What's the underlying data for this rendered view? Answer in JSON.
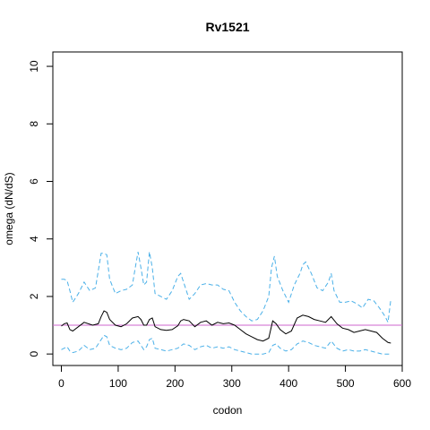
{
  "chart_data": {
    "type": "line",
    "title": "Rv1521",
    "xlabel": "codon",
    "ylabel": "omega (dN/dS)",
    "xlim": [
      -15,
      600
    ],
    "ylim": [
      -0.4,
      10.5
    ],
    "x_ticks": [
      0,
      100,
      200,
      300,
      400,
      500,
      600
    ],
    "y_ticks": [
      0,
      2,
      4,
      6,
      8,
      10
    ],
    "x_tick_labels": [
      "0",
      "100",
      "200",
      "300",
      "400",
      "500",
      "600"
    ],
    "y_tick_labels": [
      "0",
      "2",
      "4",
      "6",
      "8",
      "10"
    ],
    "grid": false,
    "reference_line": {
      "y": 1,
      "color": "#cc66cc"
    },
    "colors": {
      "omega": "#000000",
      "bounds": "#4ab0e8",
      "axis": "#000000"
    },
    "series": [
      {
        "role": "omega",
        "style": "solid",
        "x": [
          0,
          5,
          10,
          15,
          20,
          30,
          40,
          55,
          65,
          70,
          75,
          80,
          85,
          95,
          105,
          115,
          125,
          135,
          140,
          145,
          150,
          155,
          160,
          165,
          175,
          185,
          195,
          205,
          210,
          215,
          225,
          235,
          245,
          255,
          265,
          275,
          285,
          295,
          305,
          315,
          325,
          335,
          345,
          355,
          365,
          372,
          378,
          385,
          395,
          405,
          415,
          425,
          435,
          445,
          455,
          465,
          475,
          485,
          495,
          505,
          515,
          525,
          535,
          545,
          555,
          565,
          575,
          580
        ],
        "y": [
          0.97,
          1.05,
          1.08,
          0.85,
          0.8,
          0.95,
          1.1,
          1.0,
          1.05,
          1.3,
          1.5,
          1.45,
          1.2,
          1.0,
          0.95,
          1.05,
          1.25,
          1.3,
          1.2,
          1.0,
          1.0,
          1.2,
          1.25,
          0.95,
          0.85,
          0.82,
          0.85,
          0.98,
          1.15,
          1.2,
          1.15,
          0.95,
          1.1,
          1.15,
          1.0,
          1.1,
          1.05,
          1.08,
          1.0,
          0.85,
          0.7,
          0.6,
          0.5,
          0.45,
          0.55,
          1.15,
          1.05,
          0.85,
          0.7,
          0.8,
          1.25,
          1.35,
          1.3,
          1.2,
          1.15,
          1.1,
          1.3,
          1.05,
          0.9,
          0.85,
          0.75,
          0.8,
          0.85,
          0.8,
          0.75,
          0.55,
          0.4,
          0.38
        ]
      },
      {
        "role": "upper",
        "style": "dashed",
        "x": [
          0,
          5,
          10,
          15,
          20,
          30,
          40,
          50,
          60,
          70,
          75,
          80,
          85,
          95,
          105,
          115,
          125,
          130,
          135,
          140,
          145,
          150,
          155,
          160,
          165,
          175,
          185,
          195,
          205,
          210,
          215,
          225,
          235,
          245,
          255,
          265,
          275,
          285,
          295,
          305,
          315,
          325,
          335,
          345,
          355,
          365,
          370,
          375,
          380,
          390,
          400,
          410,
          420,
          425,
          430,
          440,
          450,
          460,
          470,
          475,
          480,
          490,
          500,
          510,
          520,
          530,
          540,
          550,
          560,
          570,
          575,
          580
        ],
        "y": [
          2.6,
          2.6,
          2.55,
          2.2,
          1.8,
          2.1,
          2.5,
          2.2,
          2.3,
          3.5,
          3.5,
          3.45,
          2.6,
          2.1,
          2.2,
          2.25,
          2.4,
          3.0,
          3.55,
          3.0,
          2.4,
          2.5,
          3.55,
          3.0,
          2.1,
          2.0,
          1.9,
          2.2,
          2.7,
          2.8,
          2.5,
          1.9,
          2.1,
          2.4,
          2.45,
          2.4,
          2.4,
          2.25,
          2.2,
          1.8,
          1.5,
          1.3,
          1.15,
          1.2,
          1.5,
          2.0,
          3.0,
          3.4,
          2.7,
          2.2,
          1.8,
          2.4,
          2.8,
          3.1,
          3.2,
          2.8,
          2.3,
          2.2,
          2.5,
          2.8,
          2.2,
          1.8,
          1.8,
          1.85,
          1.75,
          1.6,
          1.9,
          1.85,
          1.6,
          1.3,
          1.1,
          1.9
        ]
      },
      {
        "role": "lower",
        "style": "dashed",
        "x": [
          0,
          5,
          10,
          15,
          20,
          30,
          40,
          50,
          60,
          70,
          75,
          80,
          85,
          95,
          105,
          115,
          125,
          135,
          140,
          145,
          150,
          155,
          160,
          165,
          175,
          185,
          195,
          205,
          215,
          225,
          235,
          245,
          255,
          265,
          275,
          285,
          295,
          305,
          315,
          325,
          335,
          345,
          355,
          365,
          372,
          378,
          385,
          395,
          405,
          415,
          425,
          435,
          445,
          455,
          465,
          475,
          485,
          495,
          505,
          515,
          525,
          535,
          545,
          555,
          565,
          575,
          580
        ],
        "y": [
          0.15,
          0.2,
          0.25,
          0.1,
          0.05,
          0.1,
          0.3,
          0.15,
          0.2,
          0.5,
          0.65,
          0.6,
          0.3,
          0.2,
          0.15,
          0.2,
          0.4,
          0.45,
          0.3,
          0.15,
          0.25,
          0.5,
          0.55,
          0.2,
          0.15,
          0.1,
          0.15,
          0.2,
          0.35,
          0.3,
          0.15,
          0.25,
          0.3,
          0.2,
          0.25,
          0.2,
          0.25,
          0.15,
          0.1,
          0.05,
          0.0,
          0.0,
          0.0,
          0.05,
          0.3,
          0.35,
          0.2,
          0.1,
          0.15,
          0.35,
          0.45,
          0.4,
          0.3,
          0.25,
          0.2,
          0.45,
          0.2,
          0.1,
          0.15,
          0.1,
          0.1,
          0.15,
          0.1,
          0.05,
          0.0,
          0.0,
          0.0
        ]
      }
    ]
  }
}
